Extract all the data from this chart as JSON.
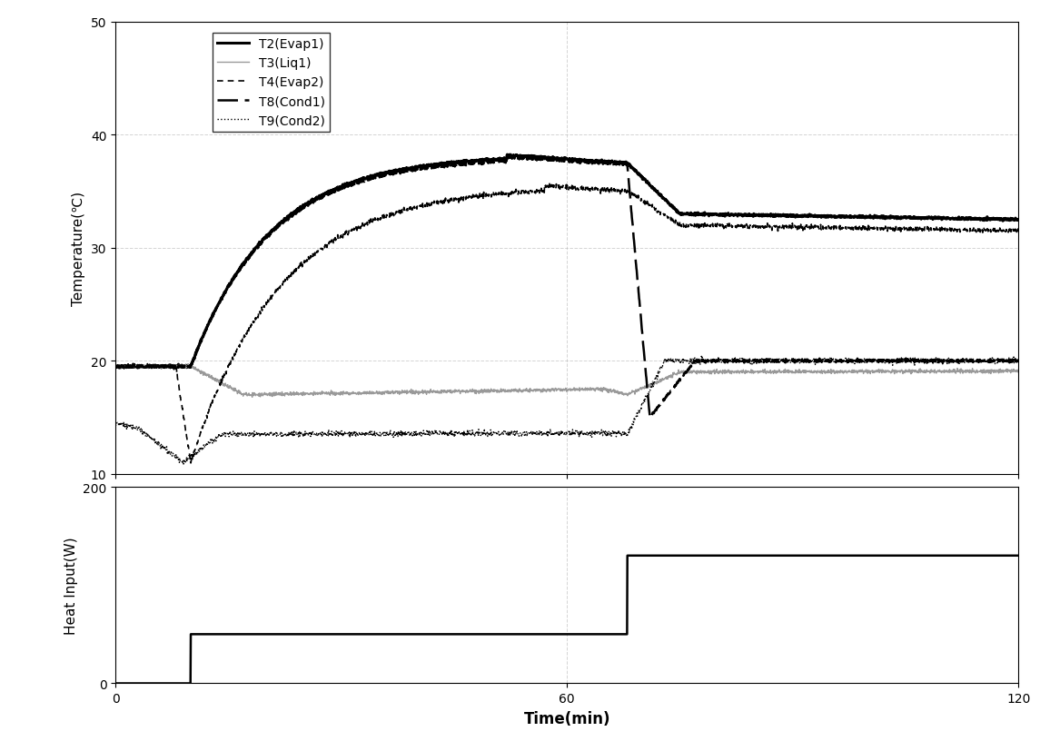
{
  "temp_ylabel": "Temperature(℃)",
  "heat_ylabel": "Heat Input(W)",
  "xlabel": "Time(min)",
  "temp_ylim": [
    10,
    50
  ],
  "temp_yticks": [
    10,
    20,
    30,
    40,
    50
  ],
  "heat_ylim": [
    0,
    200
  ],
  "heat_yticks": [
    0,
    200
  ],
  "xlim": [
    0,
    120
  ],
  "xticks": [
    0,
    60,
    120
  ],
  "grid_color": "#aaaaaa",
  "grid_style": "--",
  "grid_alpha": 0.5,
  "heat_step1": 50,
  "heat_step2": 130,
  "heat_t1": 10,
  "heat_t2": 68,
  "series": {
    "T2_Evap1": {
      "label": "T2(Evap1)",
      "color": "#000000",
      "lw": 2.2,
      "linestyle": "-"
    },
    "T3_Liq1": {
      "label": "T3(Liq1)",
      "color": "#999999",
      "lw": 1.0,
      "linestyle": "-"
    },
    "T4_Evap2": {
      "label": "T4(Evap2)",
      "color": "#000000",
      "lw": 1.2,
      "linestyle": "--"
    },
    "T8_Cond1": {
      "label": "T8(Cond1)",
      "color": "#000000",
      "lw": 1.8,
      "linestyle": "--"
    },
    "T9_Cond2": {
      "label": "T9(Cond2)",
      "color": "#000000",
      "lw": 1.0,
      "linestyle": ":"
    }
  }
}
